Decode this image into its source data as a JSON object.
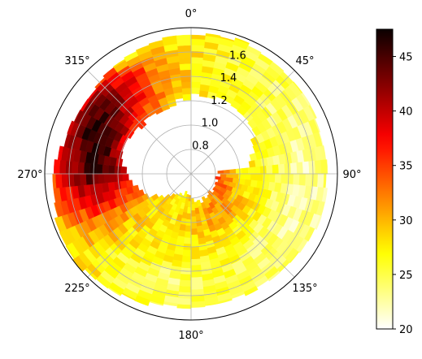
{
  "chart_data": {
    "type": "heatmap",
    "projection": "polar",
    "title": "",
    "theta_direction": "clockwise",
    "theta_zero": "top",
    "theta_tick_labels": [
      "0°",
      "45°",
      "90°",
      "135°",
      "180°",
      "225°",
      "270°",
      "315°"
    ],
    "theta_tick_values_deg": [
      0,
      45,
      90,
      135,
      180,
      225,
      270,
      315
    ],
    "r_tick_labels": [
      "0.8",
      "1.0",
      "1.2",
      "1.4",
      "1.6"
    ],
    "r_tick_values": [
      0.8,
      1.0,
      1.2,
      1.4,
      1.6
    ],
    "rlim": [
      0.6,
      1.8
    ],
    "grid": true,
    "colormap": "hot_r",
    "colorbar": {
      "placement": "right",
      "range": [
        20,
        47.5
      ],
      "tick_labels": [
        "20",
        "25",
        "30",
        "35",
        "40",
        "45"
      ],
      "tick_values": [
        20,
        25,
        30,
        35,
        40,
        45
      ]
    },
    "value_field_description": [
      {
        "theta_range_deg": [
          270,
          340
        ],
        "r_range": [
          1.05,
          1.75
        ],
        "value_range": [
          40,
          47
        ]
      },
      {
        "theta_range_deg": [
          250,
          290
        ],
        "r_range": [
          0.95,
          1.7
        ],
        "value_range": [
          36,
          44
        ]
      },
      {
        "theta_range_deg": [
          40,
          160
        ],
        "r_range": [
          1.3,
          1.75
        ],
        "value_range": [
          22,
          28
        ]
      },
      {
        "theta_range_deg": [
          160,
          250
        ],
        "r_range": [
          1.1,
          1.75
        ],
        "value_range": [
          26,
          33
        ]
      }
    ]
  }
}
